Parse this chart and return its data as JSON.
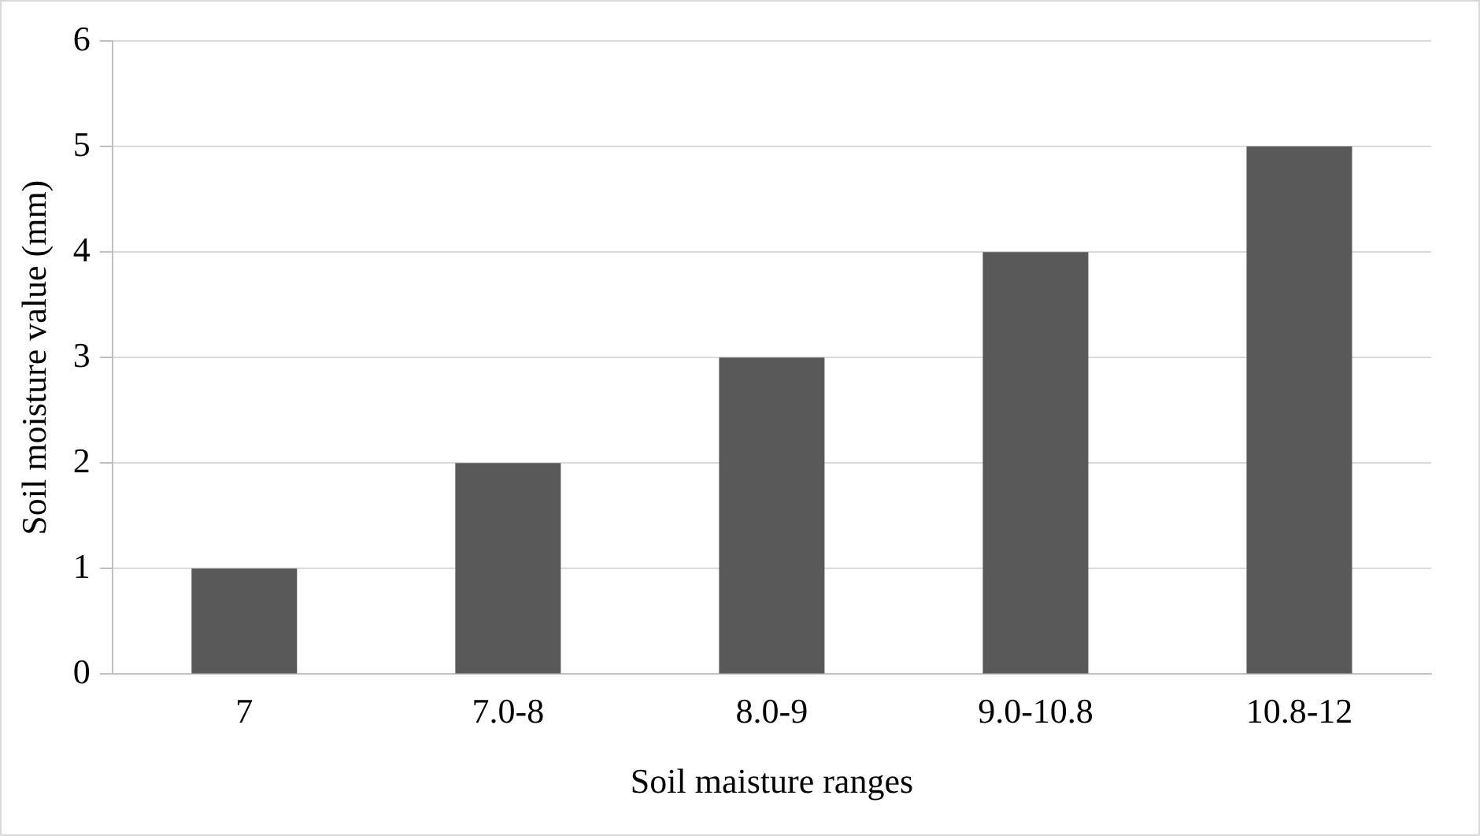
{
  "chart_data": {
    "type": "bar",
    "xlabel": "Soil maisture ranges",
    "ylabel": "Soil moisture value (mm)",
    "categories": [
      "7",
      "7.0-8",
      "8.0-9",
      "9.0-10.8",
      "10.8-12"
    ],
    "series": [
      {
        "color": "#595959",
        "values": [
          1,
          2,
          3,
          4,
          5
        ]
      }
    ],
    "ylim": [
      0,
      6
    ],
    "yticks": [
      0,
      1,
      2,
      3,
      4,
      5,
      6
    ],
    "grid": "y",
    "legend": false
  }
}
